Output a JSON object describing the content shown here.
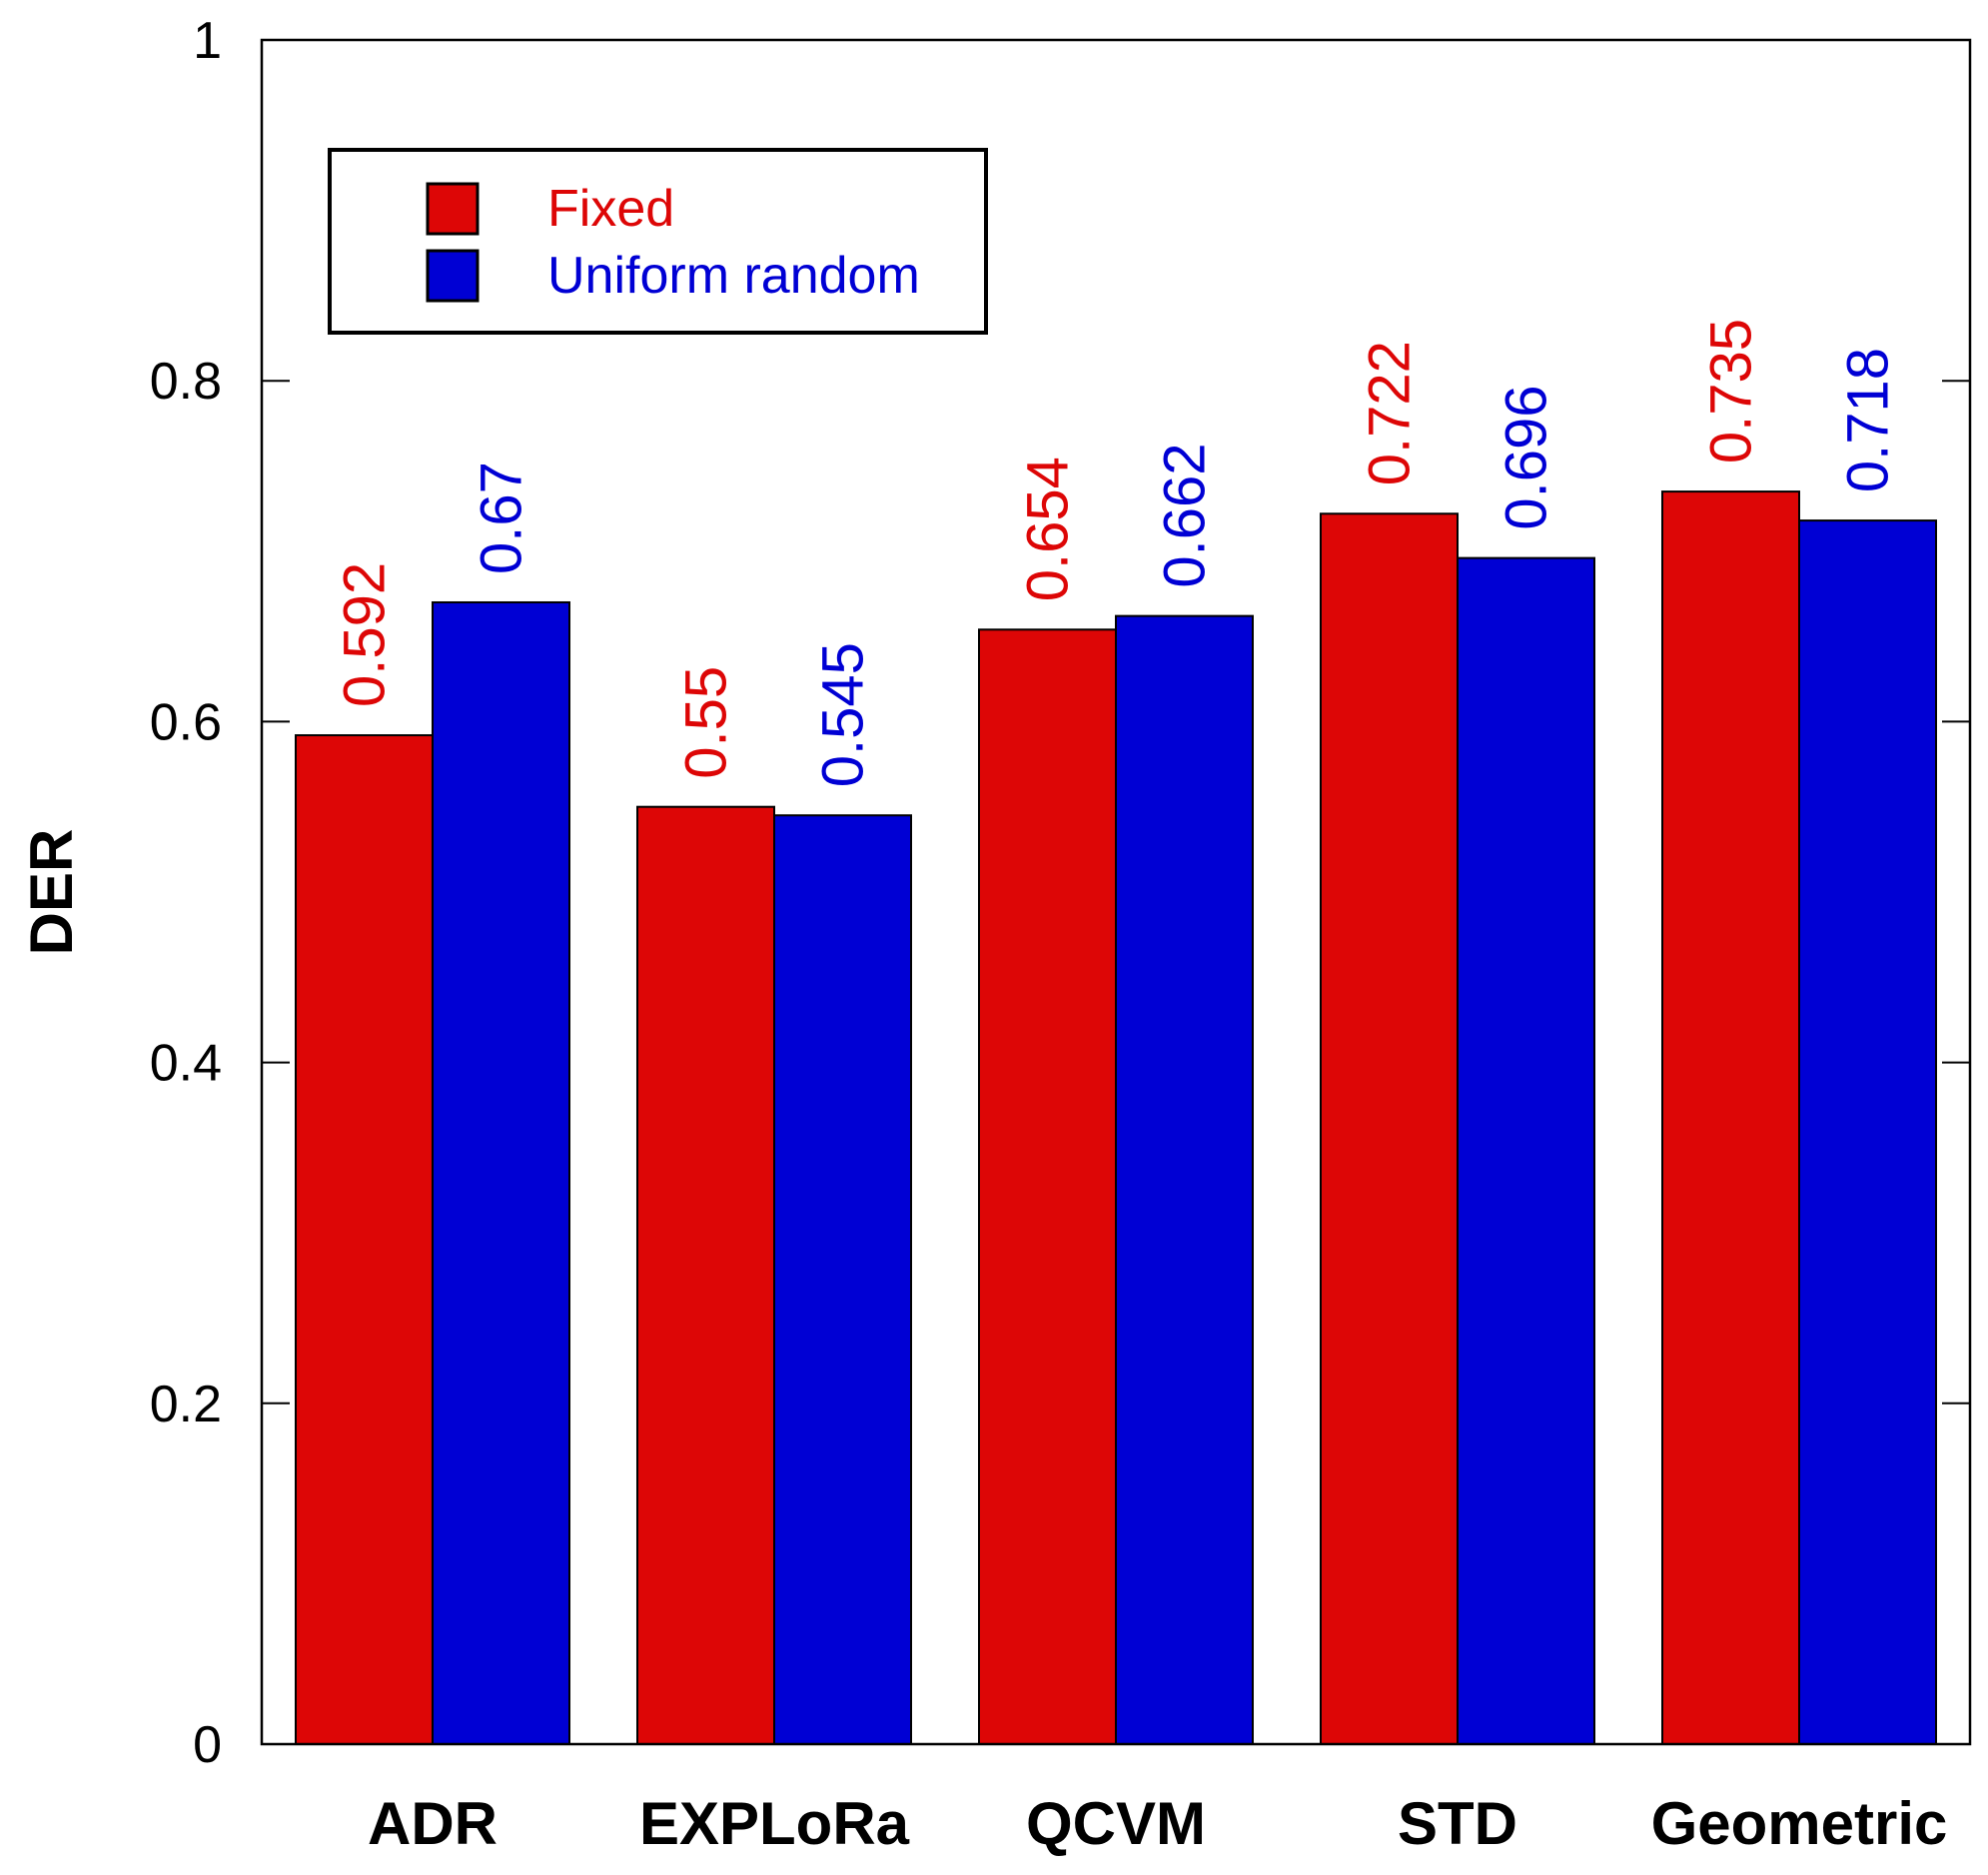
{
  "chart_data": {
    "type": "bar",
    "title": "",
    "xlabel": "",
    "ylabel": "DER",
    "ylim": [
      0,
      1
    ],
    "yticks": [
      0,
      0.2,
      0.4,
      0.6,
      0.8,
      1
    ],
    "ytick_labels": [
      "0",
      "0.2",
      "0.4",
      "0.6",
      "0.8",
      "1"
    ],
    "grid": false,
    "legend_position": "top-left",
    "categories": [
      "ADR",
      "EXPLoRa",
      "QCVM",
      "STD",
      "Geometric"
    ],
    "series": [
      {
        "name": "Fixed",
        "color": "#dd0606",
        "values": [
          0.592,
          0.55,
          0.654,
          0.722,
          0.735
        ],
        "value_labels": [
          "0.592",
          "0.55",
          "0.654",
          "0.722",
          "0.735"
        ]
      },
      {
        "name": "Uniform random",
        "color": "#0000d4",
        "values": [
          0.67,
          0.545,
          0.662,
          0.696,
          0.718
        ],
        "value_labels": [
          "0.67",
          "0.545",
          "0.662",
          "0.696",
          "0.718"
        ]
      }
    ]
  }
}
